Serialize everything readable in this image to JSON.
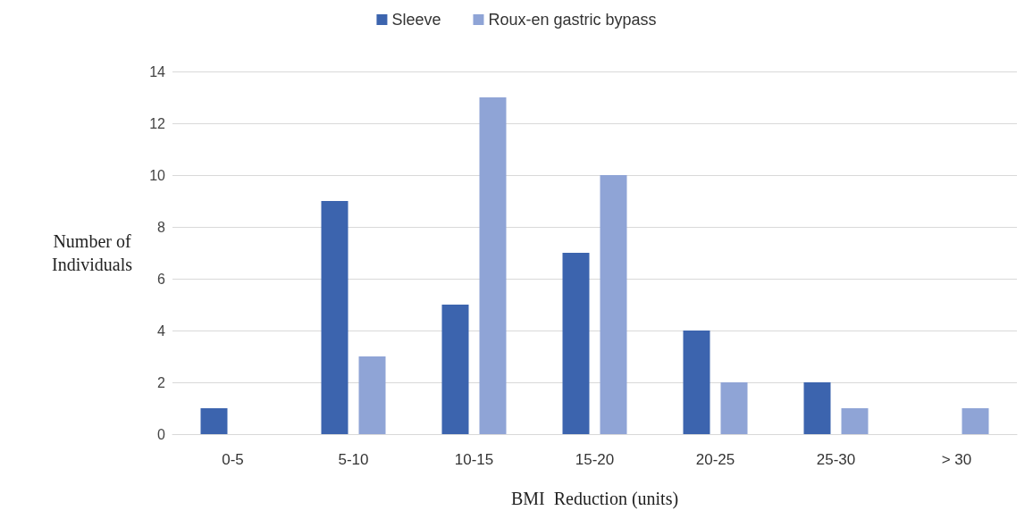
{
  "chart_data": {
    "type": "bar",
    "xlabel": "BMI  Reduction (units)",
    "ylabel": "Number of\nIndividuals",
    "categories": [
      "0-5",
      "5-10",
      "10-15",
      "15-20",
      "20-25",
      "25-30",
      "> 30"
    ],
    "series": [
      {
        "name": "Sleeve",
        "color": "#3c64ae",
        "values": [
          1,
          9,
          5,
          7,
          4,
          2,
          0
        ]
      },
      {
        "name": "Roux-en gastric bypass",
        "color": "#8fa4d6",
        "values": [
          0,
          3,
          13,
          10,
          2,
          1,
          1
        ]
      }
    ],
    "ylim": [
      0,
      14
    ],
    "yticks": [
      0,
      2,
      4,
      6,
      8,
      10,
      12,
      14
    ],
    "grid": "y",
    "legend": "top"
  }
}
